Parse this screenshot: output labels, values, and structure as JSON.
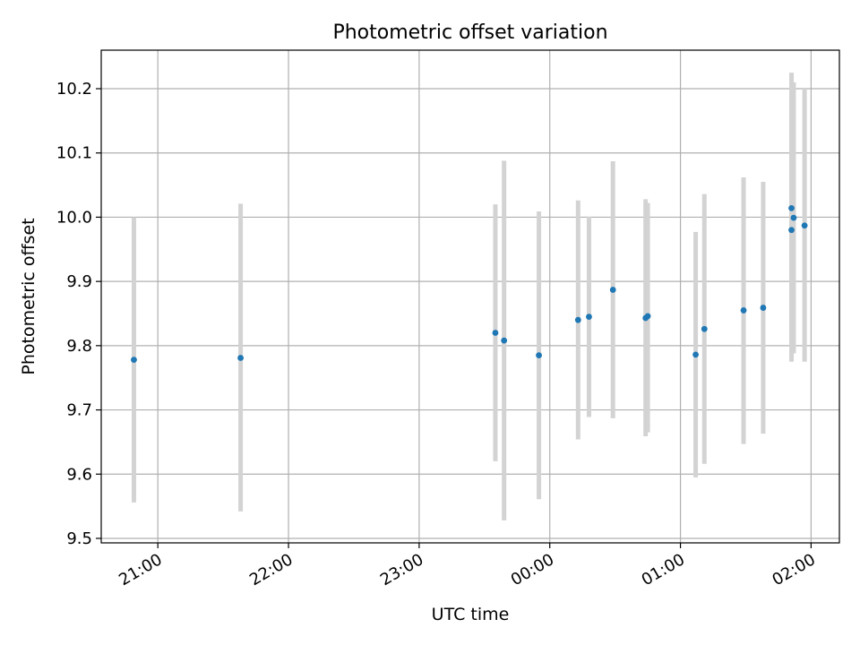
{
  "chart_data": {
    "type": "scatter",
    "title": "Photometric offset variation",
    "xlabel": "UTC time",
    "ylabel": "Photometric offset",
    "x_axis_kind": "time",
    "xlim": [
      "20:34",
      "02:13"
    ],
    "ylim": [
      9.493,
      10.26
    ],
    "grid": true,
    "colors": {
      "points": "#1f77b4",
      "errorbars": "#d3d3d3",
      "grid": "#b0b0b0"
    },
    "xticks": [
      {
        "value": "21:00",
        "label": "21:00"
      },
      {
        "value": "22:00",
        "label": "22:00"
      },
      {
        "value": "23:00",
        "label": "23:00"
      },
      {
        "value": "00:00",
        "label": "00:00"
      },
      {
        "value": "01:00",
        "label": "01:00"
      },
      {
        "value": "02:00",
        "label": "02:00"
      }
    ],
    "yticks": [
      {
        "value": 9.5,
        "label": "9.5"
      },
      {
        "value": 9.6,
        "label": "9.6"
      },
      {
        "value": 9.7,
        "label": "9.7"
      },
      {
        "value": 9.8,
        "label": "9.8"
      },
      {
        "value": 9.9,
        "label": "9.9"
      },
      {
        "value": 10.0,
        "label": "10.0"
      },
      {
        "value": 10.1,
        "label": "10.1"
      },
      {
        "value": 10.2,
        "label": "10.2"
      }
    ],
    "points": [
      {
        "x": "20:49",
        "y": 9.778,
        "ylow": 9.556,
        "yhigh": 10.0
      },
      {
        "x": "21:38",
        "y": 9.781,
        "ylow": 9.542,
        "yhigh": 10.021
      },
      {
        "x": "23:35",
        "y": 9.82,
        "ylow": 9.62,
        "yhigh": 10.02
      },
      {
        "x": "23:39",
        "y": 9.808,
        "ylow": 9.528,
        "yhigh": 10.088
      },
      {
        "x": "23:55",
        "y": 9.785,
        "ylow": 9.561,
        "yhigh": 10.009
      },
      {
        "x": "00:13",
        "y": 9.84,
        "ylow": 9.654,
        "yhigh": 10.026
      },
      {
        "x": "00:18",
        "y": 9.845,
        "ylow": 9.689,
        "yhigh": 10.001
      },
      {
        "x": "00:29",
        "y": 9.887,
        "ylow": 9.687,
        "yhigh": 10.087
      },
      {
        "x": "00:44",
        "y": 9.843,
        "ylow": 9.659,
        "yhigh": 10.028
      },
      {
        "x": "00:45",
        "y": 9.846,
        "ylow": 9.665,
        "yhigh": 10.022
      },
      {
        "x": "01:07",
        "y": 9.786,
        "ylow": 9.595,
        "yhigh": 9.977
      },
      {
        "x": "01:11",
        "y": 9.826,
        "ylow": 9.616,
        "yhigh": 10.036
      },
      {
        "x": "01:29",
        "y": 9.855,
        "ylow": 9.647,
        "yhigh": 10.062
      },
      {
        "x": "01:38",
        "y": 9.859,
        "ylow": 9.663,
        "yhigh": 10.055
      },
      {
        "x": "01:51",
        "y": 9.98,
        "ylow": 9.775,
        "yhigh": 10.185
      },
      {
        "x": "01:51",
        "y": 10.014,
        "ylow": 9.8,
        "yhigh": 10.225
      },
      {
        "x": "01:52",
        "y": 9.999,
        "ylow": 9.788,
        "yhigh": 10.21
      },
      {
        "x": "01:57",
        "y": 9.987,
        "ylow": 9.775,
        "yhigh": 10.2
      }
    ]
  }
}
